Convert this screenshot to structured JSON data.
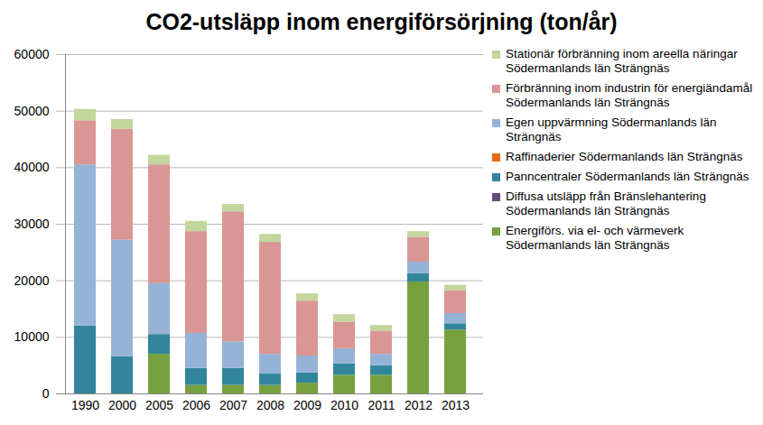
{
  "chart_data": {
    "type": "bar",
    "title": "CO2-utsläpp inom energiförsörjning (ton/år)",
    "categories": [
      "1990",
      "2000",
      "2005",
      "2006",
      "2007",
      "2008",
      "2009",
      "2010",
      "2011",
      "2012",
      "2013"
    ],
    "stacked": true,
    "legend": "right",
    "grid": true,
    "ylim": [
      0,
      60000
    ],
    "yticks": [
      0,
      10000,
      20000,
      30000,
      40000,
      50000,
      60000
    ],
    "series": [
      {
        "name": "Energiförs. via el- och värmeverk Södermanlands län Strängnäs",
        "color": "#77a03f",
        "values": [
          0,
          0,
          7000,
          1500,
          1500,
          1500,
          1900,
          3300,
          3300,
          19800,
          11300
        ]
      },
      {
        "name": "Diffusa utsläpp från Bränslehantering Södermanlands län Strängnäs",
        "color": "#604a7b",
        "values": [
          0,
          0,
          0,
          0,
          0,
          0,
          0,
          0,
          0,
          0,
          0
        ]
      },
      {
        "name": "Panncentraler Södermanlands län Strängnäs",
        "color": "#31859c",
        "values": [
          12000,
          6600,
          3500,
          3000,
          3000,
          2000,
          1800,
          2000,
          1700,
          1500,
          1100
        ]
      },
      {
        "name": "Raffinaderier Södermanlands län Strängnäs",
        "color": "#e46c0a",
        "values": [
          0,
          0,
          0,
          0,
          0,
          0,
          0,
          0,
          0,
          0,
          0
        ]
      },
      {
        "name": "Egen uppvärmning Södermanlands län Strängnäs",
        "color": "#95b3d7",
        "values": [
          28500,
          20600,
          9000,
          6200,
          4700,
          3500,
          3000,
          2700,
          2000,
          2000,
          1800
        ]
      },
      {
        "name": "Förbränning inom industrin för energiändamål Södermanlands län Strängnäs",
        "color": "#d99694",
        "values": [
          7800,
          19600,
          21000,
          18000,
          23000,
          19800,
          9700,
          4700,
          4100,
          4400,
          4000
        ]
      },
      {
        "name": "Stationär förbränning inom areella näringar Södermanlands län Strängnäs",
        "color": "#c3d69b",
        "values": [
          2000,
          1700,
          1700,
          1800,
          1300,
          1400,
          1300,
          1300,
          1000,
          1000,
          1000
        ]
      }
    ]
  }
}
